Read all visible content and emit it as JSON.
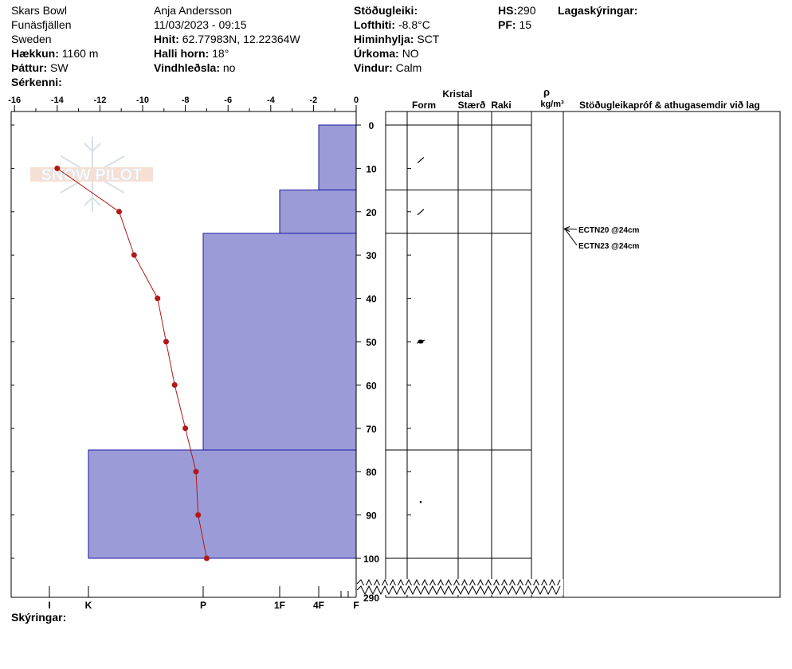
{
  "header": {
    "location": "Skars Bowl",
    "region": "Funäsfjällen",
    "country": "Sweden",
    "elevation_label": "Hækkun:",
    "elevation": "1160 m",
    "aspect_label": "Þáttur:",
    "aspect": "SW",
    "specifics_label": "Sérkenni:",
    "observer": "Anja Andersson",
    "datetime": "11/03/2023 - 09:15",
    "coords_label": "Hnit:",
    "coords": "62.77983N, 12.22364W",
    "slope_label": "Halli horn:",
    "slope": "18°",
    "wind_loading_label": "Vindhleðsla:",
    "wind_loading": "no",
    "stability_label": "Stöðugleiki:",
    "air_temp_label": "Lofthiti:",
    "air_temp": "-8.8°C",
    "sky_label": "Himinhylja:",
    "sky": "SCT",
    "precip_label": "Úrkoma:",
    "precip": "NO",
    "wind_label": "Vindur:",
    "wind": "Calm",
    "hs_label": "HS:",
    "hs": "290",
    "pf_label": "PF:",
    "pf": "15",
    "layer_notes_label": "Lagaskýringar:"
  },
  "footer": {
    "notes_label": "Skýringar:"
  },
  "watermark": "SNOW PILOT",
  "chart_data": {
    "type": "snow-profile",
    "temperature_axis": {
      "ticks": [
        -16,
        -14,
        -12,
        -10,
        -8,
        -6,
        -4,
        -2,
        0
      ],
      "range": [
        -16,
        0
      ]
    },
    "depth_axis": {
      "ticks": [
        0,
        10,
        20,
        30,
        40,
        50,
        60,
        70,
        80,
        90,
        100
      ],
      "range": [
        0,
        100
      ],
      "bottom_label": "290"
    },
    "hardness_ticks": [
      {
        "label": "I",
        "value": 1
      },
      {
        "label": "K",
        "value": 2
      },
      {
        "label": "P",
        "value": 4
      },
      {
        "label": "1F",
        "value": 6
      },
      {
        "label": "4F",
        "value": 7
      },
      {
        "label": "F",
        "value": 8
      }
    ],
    "hardness_layers": [
      {
        "top": 0,
        "bottom": 15,
        "hardness": 7
      },
      {
        "top": 15,
        "bottom": 25,
        "hardness": 6
      },
      {
        "top": 25,
        "bottom": 75,
        "hardness": 4
      },
      {
        "top": 75,
        "bottom": 100,
        "hardness": 2
      }
    ],
    "temperature_profile": [
      {
        "depth": 10,
        "temp": -14.0
      },
      {
        "depth": 20,
        "temp": -11.1
      },
      {
        "depth": 30,
        "temp": -10.4
      },
      {
        "depth": 40,
        "temp": -9.3
      },
      {
        "depth": 50,
        "temp": -8.9
      },
      {
        "depth": 60,
        "temp": -8.5
      },
      {
        "depth": 70,
        "temp": -8.0
      },
      {
        "depth": 80,
        "temp": -7.5
      },
      {
        "depth": 90,
        "temp": -7.4
      },
      {
        "depth": 100,
        "temp": -7.0
      }
    ],
    "layer_boundaries": [
      0,
      15,
      25,
      75,
      100
    ],
    "grain_symbols": [
      {
        "depth": 8,
        "form": "decomposing"
      },
      {
        "depth": 20,
        "form": "decomposing"
      },
      {
        "depth": 50,
        "form": "melt-form"
      },
      {
        "depth": 87,
        "form": "rounded"
      }
    ],
    "columns": {
      "crystal": "Kristal",
      "form": "Form",
      "size": "Stærð",
      "wetness": "Raki",
      "density_symbol": "ρ",
      "density_unit": "kg/m³",
      "tests": "Stöðugleikapróf & athugasemdir við lag"
    },
    "stability_tests": [
      {
        "label": "ECTN20 @24cm",
        "depth": 24
      },
      {
        "label": "ECTN23 @24cm",
        "depth": 24
      }
    ]
  }
}
